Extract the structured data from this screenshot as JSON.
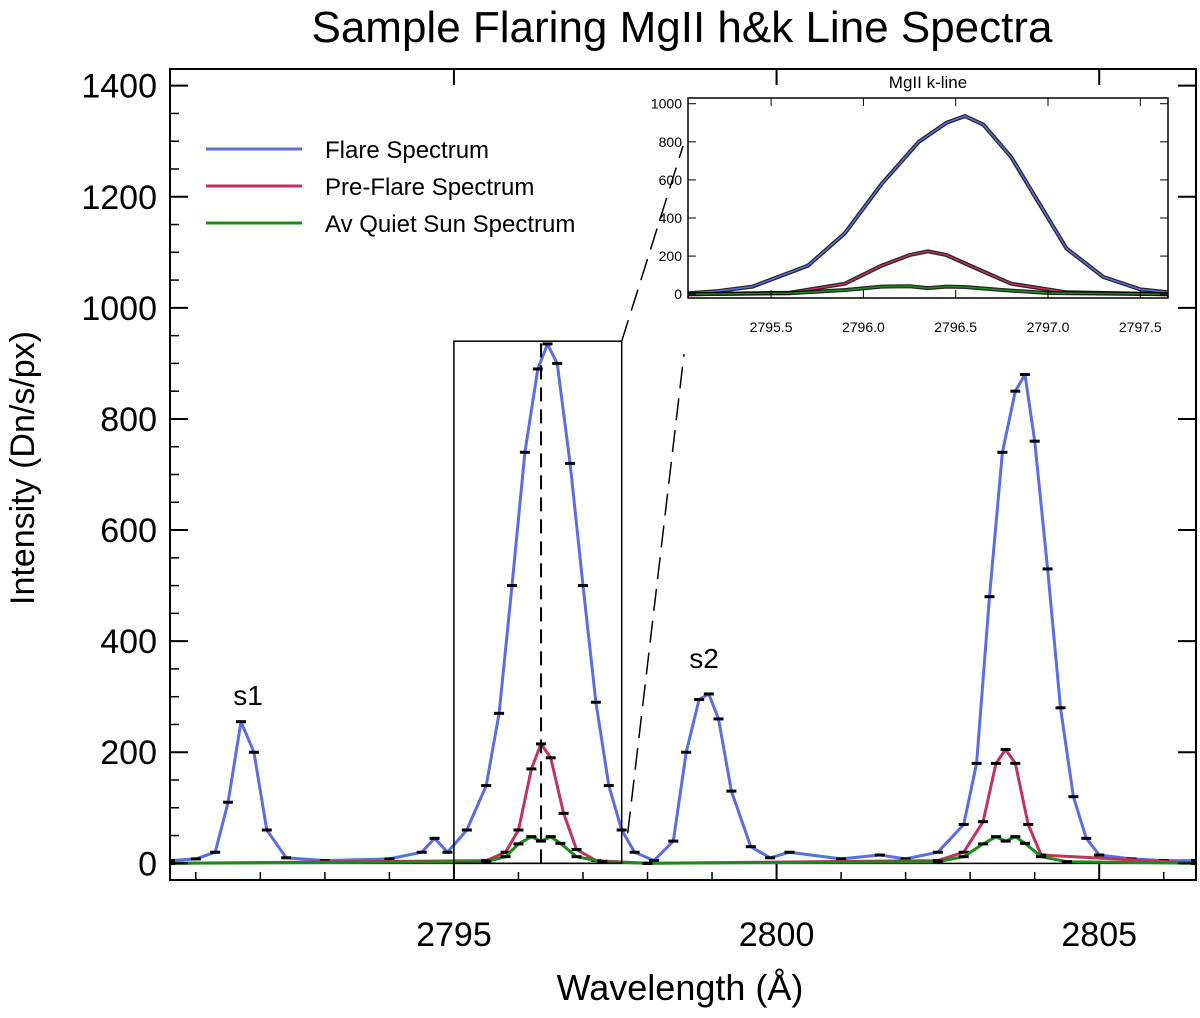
{
  "chart_data": [
    {
      "type": "line",
      "title": "Sample Flaring MgII h&k Line Spectra",
      "xlabel": "Wavelength (Å)",
      "ylabel": "Intensity (Dn/s/px)",
      "xlim": [
        2790.6,
        2806.5
      ],
      "ylim": [
        -30,
        1430
      ],
      "xticks": [
        2795,
        2800,
        2805
      ],
      "yticks": [
        0,
        200,
        400,
        600,
        800,
        1000,
        1200,
        1400
      ],
      "legend_position": "top-left",
      "annotations": [
        {
          "text": "s1",
          "x": 2791.7,
          "y": 295
        },
        {
          "text": "s2",
          "x": 2798.9,
          "y": 355
        }
      ],
      "zoom_box": {
        "x": [
          2795.0,
          2797.6
        ],
        "y": [
          0,
          940
        ]
      },
      "reference_line_x": 2796.35,
      "series": [
        {
          "name": "Flare Spectrum",
          "color": "#5b6ee1",
          "x": [
            2790.6,
            2791.0,
            2791.3,
            2791.5,
            2791.7,
            2791.9,
            2792.1,
            2792.4,
            2793.0,
            2794.0,
            2794.5,
            2794.7,
            2794.9,
            2795.2,
            2795.5,
            2795.7,
            2795.9,
            2796.1,
            2796.3,
            2796.45,
            2796.6,
            2796.8,
            2797.0,
            2797.2,
            2797.4,
            2797.6,
            2797.8,
            2798.1,
            2798.4,
            2798.6,
            2798.8,
            2798.95,
            2799.1,
            2799.3,
            2799.6,
            2799.9,
            2800.2,
            2801.0,
            2801.6,
            2802.0,
            2802.5,
            2802.9,
            2803.1,
            2803.3,
            2803.5,
            2803.7,
            2803.85,
            2804.0,
            2804.2,
            2804.4,
            2804.6,
            2804.8,
            2805.0,
            2805.5,
            2806.0,
            2806.5
          ],
          "y": [
            5,
            8,
            20,
            110,
            255,
            200,
            60,
            10,
            5,
            8,
            20,
            45,
            20,
            60,
            140,
            270,
            500,
            740,
            890,
            935,
            900,
            720,
            500,
            290,
            140,
            60,
            20,
            5,
            40,
            200,
            295,
            305,
            260,
            130,
            30,
            10,
            20,
            8,
            15,
            8,
            20,
            70,
            180,
            480,
            740,
            850,
            880,
            760,
            530,
            280,
            120,
            45,
            15,
            8,
            5,
            5
          ]
        },
        {
          "name": "Pre-Flare Spectrum",
          "color": "#c2325d",
          "x": [
            2790.6,
            2795.5,
            2795.8,
            2796.0,
            2796.2,
            2796.35,
            2796.5,
            2796.7,
            2796.9,
            2797.2,
            2798.0,
            2802.5,
            2802.9,
            2803.2,
            2803.4,
            2803.55,
            2803.7,
            2803.9,
            2804.1,
            2806.5
          ],
          "y": [
            0,
            5,
            20,
            60,
            170,
            215,
            190,
            90,
            25,
            5,
            0,
            5,
            20,
            75,
            180,
            205,
            180,
            70,
            15,
            0
          ]
        },
        {
          "name": "Av Quiet Sun Spectrum",
          "color": "#1a8c1a",
          "x": [
            2790.6,
            2795.5,
            2795.8,
            2796.0,
            2796.2,
            2796.35,
            2796.5,
            2796.65,
            2796.9,
            2797.3,
            2798.0,
            2802.5,
            2802.9,
            2803.2,
            2803.4,
            2803.55,
            2803.7,
            2803.85,
            2804.1,
            2804.5,
            2806.5
          ],
          "y": [
            0,
            3,
            12,
            35,
            48,
            40,
            48,
            36,
            12,
            3,
            0,
            3,
            12,
            35,
            48,
            40,
            48,
            36,
            12,
            3,
            0
          ]
        }
      ]
    },
    {
      "type": "line",
      "title": "MgII k-line",
      "xlim": [
        2795.05,
        2797.65
      ],
      "ylim": [
        -20,
        1030
      ],
      "xticks": [
        2795.5,
        2796.0,
        2796.5,
        2797.0,
        2797.5
      ],
      "yticks": [
        0,
        200,
        400,
        600,
        800,
        1000
      ],
      "series": [
        {
          "name": "Flare Spectrum",
          "color": "#5b6ee1",
          "x": [
            2795.05,
            2795.2,
            2795.4,
            2795.55,
            2795.7,
            2795.9,
            2796.1,
            2796.3,
            2796.45,
            2796.55,
            2796.65,
            2796.8,
            2796.95,
            2797.1,
            2797.3,
            2797.5,
            2797.65
          ],
          "y": [
            5,
            15,
            40,
            95,
            150,
            320,
            580,
            800,
            900,
            935,
            890,
            720,
            480,
            240,
            90,
            25,
            10
          ]
        },
        {
          "name": "Pre-Flare Spectrum",
          "color": "#c2325d",
          "x": [
            2795.05,
            2795.6,
            2795.9,
            2796.1,
            2796.25,
            2796.35,
            2796.45,
            2796.6,
            2796.8,
            2797.1,
            2797.65
          ],
          "y": [
            0,
            8,
            55,
            150,
            205,
            225,
            205,
            140,
            55,
            10,
            0
          ]
        },
        {
          "name": "Av Quiet Sun Spectrum",
          "color": "#1a8c1a",
          "x": [
            2795.05,
            2795.6,
            2795.9,
            2796.1,
            2796.25,
            2796.35,
            2796.45,
            2796.55,
            2796.75,
            2797.0,
            2797.65
          ],
          "y": [
            0,
            5,
            22,
            40,
            42,
            32,
            40,
            38,
            22,
            6,
            0
          ]
        }
      ]
    }
  ]
}
